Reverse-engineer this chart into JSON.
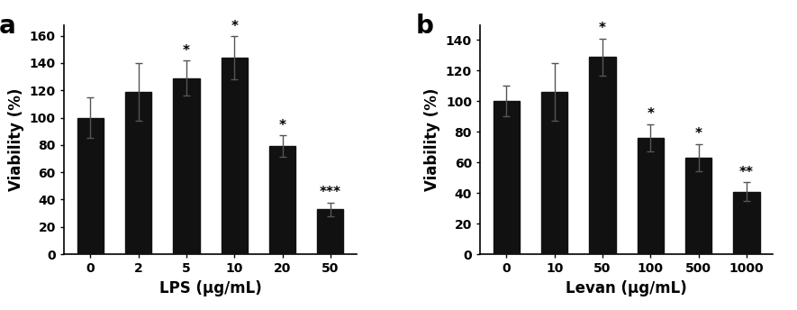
{
  "lps": {
    "categories": [
      "0",
      "2",
      "5",
      "10",
      "20",
      "50"
    ],
    "values": [
      100,
      119,
      129,
      144,
      79,
      33
    ],
    "errors": [
      15,
      21,
      13,
      16,
      8,
      5
    ],
    "significance": [
      "",
      "",
      "*",
      "*",
      "*",
      "***"
    ],
    "xlabel": "LPS (μg/mL)",
    "ylabel": "Viability (%)",
    "label": "a",
    "ylim": [
      0,
      168
    ],
    "yticks": [
      0,
      20,
      40,
      60,
      80,
      100,
      120,
      140,
      160
    ]
  },
  "levan": {
    "categories": [
      "0",
      "10",
      "50",
      "100",
      "500",
      "1000"
    ],
    "values": [
      100,
      106,
      129,
      76,
      63,
      41
    ],
    "errors": [
      10,
      19,
      12,
      9,
      9,
      6
    ],
    "significance": [
      "",
      "",
      "*",
      "*",
      "*",
      "**"
    ],
    "xlabel": "Levan (μg/mL)",
    "ylabel": "Viability (%)",
    "label": "b",
    "ylim": [
      0,
      150
    ],
    "yticks": [
      0,
      20,
      40,
      60,
      80,
      100,
      120,
      140
    ]
  },
  "bar_color": "#111111",
  "error_color": "#555555",
  "bar_width": 0.55,
  "sig_fontsize": 11,
  "tick_fontsize": 10,
  "axis_label_fontsize": 12,
  "panel_label_fontsize": 20
}
